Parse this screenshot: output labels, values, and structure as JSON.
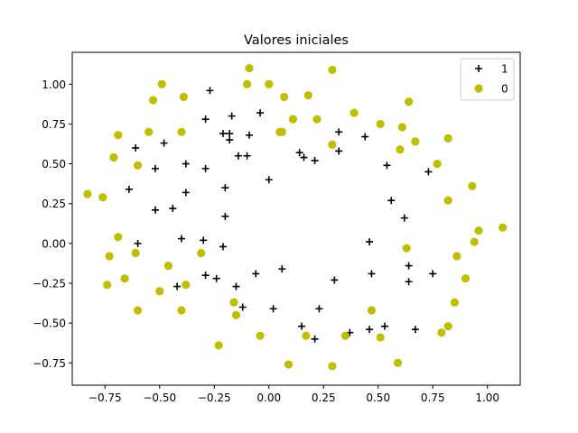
{
  "chart_data": {
    "type": "scatter",
    "title": "Valores iniciales",
    "xlabel": "",
    "ylabel": "",
    "xlim": [
      -0.9,
      1.15
    ],
    "ylim": [
      -0.89,
      1.2
    ],
    "xticks": [
      -0.75,
      -0.5,
      -0.25,
      0.0,
      0.25,
      0.5,
      0.75,
      1.0
    ],
    "xtick_labels": [
      "−0.75",
      "−0.50",
      "−0.25",
      "0.00",
      "0.25",
      "0.50",
      "0.75",
      "1.00"
    ],
    "yticks": [
      -0.75,
      -0.5,
      -0.25,
      0.0,
      0.25,
      0.5,
      0.75,
      1.0
    ],
    "ytick_labels": [
      "−0.75",
      "−0.50",
      "−0.25",
      "0.00",
      "0.25",
      "0.50",
      "0.75",
      "1.00"
    ],
    "grid": false,
    "legend_position": "top-right",
    "series": [
      {
        "name": "1",
        "marker": "plus",
        "color": "#000000",
        "points": [
          [
            -0.27,
            0.96
          ],
          [
            -0.17,
            0.8
          ],
          [
            -0.04,
            0.82
          ],
          [
            -0.29,
            0.78
          ],
          [
            -0.48,
            0.63
          ],
          [
            -0.61,
            0.6
          ],
          [
            -0.21,
            0.69
          ],
          [
            -0.18,
            0.69
          ],
          [
            -0.09,
            0.68
          ],
          [
            -0.18,
            0.65
          ],
          [
            -0.14,
            0.55
          ],
          [
            -0.1,
            0.55
          ],
          [
            -0.38,
            0.5
          ],
          [
            -0.52,
            0.47
          ],
          [
            -0.29,
            0.47
          ],
          [
            0.32,
            0.7
          ],
          [
            0.44,
            0.67
          ],
          [
            0.32,
            0.58
          ],
          [
            0.14,
            0.57
          ],
          [
            0.16,
            0.54
          ],
          [
            0.21,
            0.52
          ],
          [
            0.54,
            0.49
          ],
          [
            0.73,
            0.45
          ],
          [
            0.0,
            0.4
          ],
          [
            -0.64,
            0.34
          ],
          [
            -0.2,
            0.35
          ],
          [
            -0.38,
            0.32
          ],
          [
            0.56,
            0.27
          ],
          [
            -0.52,
            0.21
          ],
          [
            -0.44,
            0.22
          ],
          [
            -0.2,
            0.17
          ],
          [
            0.62,
            0.16
          ],
          [
            -0.6,
            0.0
          ],
          [
            -0.4,
            0.03
          ],
          [
            -0.3,
            0.02
          ],
          [
            -0.21,
            -0.02
          ],
          [
            0.46,
            0.01
          ],
          [
            0.64,
            -0.14
          ],
          [
            0.47,
            -0.19
          ],
          [
            0.75,
            -0.19
          ],
          [
            -0.06,
            -0.19
          ],
          [
            0.06,
            -0.16
          ],
          [
            -0.29,
            -0.2
          ],
          [
            -0.24,
            -0.22
          ],
          [
            -0.42,
            -0.27
          ],
          [
            -0.15,
            -0.27
          ],
          [
            0.3,
            -0.23
          ],
          [
            0.64,
            -0.24
          ],
          [
            -0.12,
            -0.4
          ],
          [
            0.02,
            -0.41
          ],
          [
            0.23,
            -0.41
          ],
          [
            0.15,
            -0.52
          ],
          [
            0.53,
            -0.52
          ],
          [
            0.46,
            -0.54
          ],
          [
            0.67,
            -0.54
          ],
          [
            0.37,
            -0.56
          ],
          [
            0.21,
            -0.6
          ]
        ]
      },
      {
        "name": "0",
        "marker": "circle",
        "color": "#bfbf00",
        "points": [
          [
            -0.09,
            1.1
          ],
          [
            0.29,
            1.09
          ],
          [
            -0.49,
            1.0
          ],
          [
            -0.1,
            1.0
          ],
          [
            0.0,
            1.0
          ],
          [
            -0.53,
            0.9
          ],
          [
            -0.39,
            0.92
          ],
          [
            0.07,
            0.92
          ],
          [
            0.18,
            0.93
          ],
          [
            0.64,
            0.89
          ],
          [
            0.39,
            0.82
          ],
          [
            0.11,
            0.78
          ],
          [
            0.22,
            0.78
          ],
          [
            0.51,
            0.75
          ],
          [
            0.61,
            0.73
          ],
          [
            -0.55,
            0.7
          ],
          [
            -0.4,
            0.7
          ],
          [
            0.05,
            0.7
          ],
          [
            0.06,
            0.7
          ],
          [
            -0.69,
            0.68
          ],
          [
            0.82,
            0.66
          ],
          [
            0.67,
            0.64
          ],
          [
            0.29,
            0.62
          ],
          [
            0.6,
            0.59
          ],
          [
            -0.71,
            0.54
          ],
          [
            -0.6,
            0.49
          ],
          [
            0.77,
            0.5
          ],
          [
            0.93,
            0.36
          ],
          [
            -0.83,
            0.31
          ],
          [
            -0.76,
            0.29
          ],
          [
            0.82,
            0.27
          ],
          [
            0.96,
            0.08
          ],
          [
            1.07,
            0.1
          ],
          [
            -0.69,
            0.04
          ],
          [
            0.94,
            0.01
          ],
          [
            0.63,
            -0.03
          ],
          [
            -0.73,
            -0.08
          ],
          [
            -0.61,
            -0.06
          ],
          [
            0.86,
            -0.08
          ],
          [
            -0.31,
            -0.06
          ],
          [
            -0.46,
            -0.14
          ],
          [
            -0.66,
            -0.22
          ],
          [
            0.9,
            -0.22
          ],
          [
            -0.74,
            -0.26
          ],
          [
            -0.38,
            -0.26
          ],
          [
            -0.5,
            -0.3
          ],
          [
            0.85,
            -0.37
          ],
          [
            -0.16,
            -0.37
          ],
          [
            -0.6,
            -0.42
          ],
          [
            -0.4,
            -0.42
          ],
          [
            0.47,
            -0.42
          ],
          [
            -0.15,
            -0.45
          ],
          [
            0.82,
            -0.52
          ],
          [
            0.79,
            -0.56
          ],
          [
            -0.04,
            -0.58
          ],
          [
            0.17,
            -0.58
          ],
          [
            0.35,
            -0.58
          ],
          [
            0.51,
            -0.59
          ],
          [
            -0.23,
            -0.64
          ],
          [
            0.09,
            -0.76
          ],
          [
            0.29,
            -0.77
          ],
          [
            0.59,
            -0.75
          ]
        ]
      }
    ]
  }
}
